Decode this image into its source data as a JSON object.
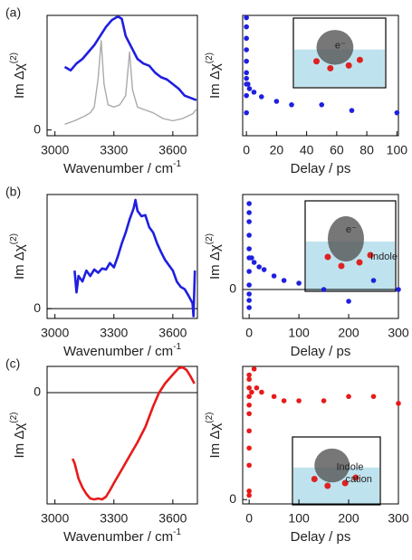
{
  "chart_data": [
    {
      "type": "line",
      "panel_label": "(a)",
      "xlabel": "Wavenumber / cm",
      "xlabel_sup": "-1",
      "ylabel": "Im Δχ",
      "ylabel_sup": "(2)",
      "xlim": [
        2960,
        3725
      ],
      "xticks": [
        3000,
        3300,
        3600
      ],
      "ylim": [
        -0.05,
        1
      ],
      "yticks": [
        0
      ],
      "zero_line": false,
      "series": [
        {
          "color": "#1f1fe0",
          "x": [
            3050,
            3080,
            3110,
            3140,
            3170,
            3200,
            3230,
            3260,
            3290,
            3320,
            3340,
            3360,
            3390,
            3420,
            3450,
            3480,
            3510,
            3540,
            3570,
            3600,
            3630,
            3660,
            3690,
            3720
          ],
          "values": [
            0.55,
            0.52,
            0.58,
            0.62,
            0.68,
            0.74,
            0.82,
            0.9,
            0.96,
            0.99,
            0.97,
            0.82,
            0.72,
            0.62,
            0.58,
            0.56,
            0.5,
            0.46,
            0.44,
            0.4,
            0.36,
            0.3,
            0.28,
            0.26
          ]
        },
        {
          "color": "#aaaaaa",
          "x": [
            3050,
            3100,
            3150,
            3180,
            3200,
            3220,
            3235,
            3250,
            3270,
            3300,
            3330,
            3360,
            3380,
            3395,
            3420,
            3450,
            3500,
            3550,
            3600,
            3650,
            3700,
            3720
          ],
          "values": [
            0.05,
            0.08,
            0.12,
            0.15,
            0.2,
            0.45,
            0.78,
            0.4,
            0.22,
            0.2,
            0.22,
            0.3,
            0.68,
            0.35,
            0.2,
            0.18,
            0.15,
            0.1,
            0.08,
            0.1,
            0.14,
            0.18
          ]
        }
      ]
    },
    {
      "type": "scatter",
      "xlabel": "Delay / ps",
      "ylabel": "Im Δχ",
      "ylabel_sup": "(2)",
      "color": "#1f1fe0",
      "xlim": [
        -2.5,
        101
      ],
      "xticks": [
        0,
        20,
        40,
        60,
        80,
        100
      ],
      "ylim": [
        -0.05,
        1
      ],
      "yticks": [],
      "zero_line": false,
      "inset_labels": [
        "e⁻"
      ],
      "x": [
        0,
        0,
        0,
        0,
        0,
        0,
        0,
        0,
        0,
        0,
        1,
        2,
        5,
        10,
        20,
        30,
        50,
        70,
        100
      ],
      "values": [
        0.98,
        0.9,
        0.8,
        0.7,
        0.6,
        0.5,
        0.45,
        0.4,
        0.3,
        0.15,
        0.4,
        0.36,
        0.33,
        0.29,
        0.25,
        0.22,
        0.22,
        0.17,
        0.15
      ]
    },
    {
      "type": "line",
      "panel_label": "(b)",
      "xlabel": "Wavenumber / cm",
      "xlabel_sup": "-1",
      "ylabel": "Im Δχ",
      "ylabel_sup": "(2)",
      "xlim": [
        2960,
        3725
      ],
      "xticks": [
        3000,
        3300,
        3600
      ],
      "ylim": [
        -0.09,
        1.05
      ],
      "yticks": [
        0
      ],
      "zero_line": true,
      "series": [
        {
          "color": "#1f1fe0",
          "x": [
            3100,
            3110,
            3120,
            3140,
            3160,
            3180,
            3200,
            3220,
            3240,
            3260,
            3280,
            3300,
            3320,
            3340,
            3360,
            3380,
            3400,
            3410,
            3420,
            3440,
            3460,
            3480,
            3500,
            3520,
            3540,
            3560,
            3580,
            3600,
            3620,
            3640,
            3660,
            3680,
            3700,
            3705,
            3712
          ],
          "values": [
            0.35,
            0.15,
            0.3,
            0.25,
            0.35,
            0.3,
            0.36,
            0.33,
            0.37,
            0.36,
            0.42,
            0.38,
            0.48,
            0.6,
            0.7,
            0.82,
            0.92,
            1.0,
            0.9,
            0.85,
            0.86,
            0.75,
            0.7,
            0.6,
            0.52,
            0.45,
            0.4,
            0.35,
            0.25,
            0.2,
            0.18,
            0.12,
            0.05,
            -0.07,
            0.35
          ]
        }
      ]
    },
    {
      "type": "scatter",
      "xlabel": "Delay / ps",
      "ylabel": "Im Δχ",
      "ylabel_sup": "(2)",
      "color": "#1f1fe0",
      "xlim": [
        -13,
        300
      ],
      "xticks": [
        0,
        100,
        200,
        300
      ],
      "ylim": [
        -0.32,
        1.05
      ],
      "yticks": [
        0
      ],
      "zero_line": true,
      "inset_labels": [
        "e⁻",
        "Indole"
      ],
      "x": [
        0,
        0,
        0,
        0,
        0,
        0,
        0,
        0,
        0,
        0,
        0,
        5,
        10,
        20,
        30,
        50,
        70,
        100,
        150,
        200,
        250,
        300
      ],
      "values": [
        0.95,
        0.85,
        0.75,
        0.6,
        0.45,
        0.35,
        0.2,
        0.05,
        -0.05,
        -0.12,
        -0.2,
        0.35,
        0.3,
        0.25,
        0.22,
        0.15,
        0.1,
        0.07,
        0.0,
        -0.13,
        0.1,
        0.0
      ]
    },
    {
      "type": "line",
      "panel_label": "(c)",
      "xlabel": "Wavenumber / cm",
      "xlabel_sup": "-1",
      "ylabel": "Im Δχ",
      "ylabel_sup": "(2)",
      "xlim": [
        2960,
        3725
      ],
      "xticks": [
        3000,
        3300,
        3600
      ],
      "ylim": [
        -1.23,
        0.29
      ],
      "yticks": [
        0
      ],
      "zero_line": true,
      "series": [
        {
          "color": "#e81a1a",
          "x": [
            3090,
            3100,
            3120,
            3140,
            3160,
            3180,
            3200,
            3220,
            3240,
            3260,
            3280,
            3300,
            3340,
            3380,
            3420,
            3460,
            3500,
            3530,
            3560,
            3600,
            3630,
            3650,
            3670,
            3690,
            3710
          ],
          "values": [
            -0.73,
            -0.78,
            -0.95,
            -1.05,
            -1.12,
            -1.17,
            -1.18,
            -1.17,
            -1.18,
            -1.15,
            -1.08,
            -1.0,
            -0.85,
            -0.7,
            -0.55,
            -0.38,
            -0.15,
            0.0,
            0.1,
            0.2,
            0.27,
            0.28,
            0.25,
            0.18,
            0.1
          ]
        }
      ]
    },
    {
      "type": "scatter",
      "xlabel": "Delay / ps",
      "ylabel": "Im Δχ",
      "ylabel_sup": "(2)",
      "color": "#e81a1a",
      "xlim": [
        -13,
        300
      ],
      "xticks": [
        0,
        100,
        200,
        300
      ],
      "ylim": [
        -0.05,
        1.55
      ],
      "yticks": [
        0
      ],
      "zero_line": false,
      "inset_labels": [
        "Indole",
        "cation"
      ],
      "x": [
        0,
        0,
        0,
        0,
        0,
        0,
        0,
        0,
        0,
        0,
        0,
        5,
        10,
        15,
        25,
        50,
        70,
        100,
        150,
        200,
        250,
        300
      ],
      "values": [
        1.45,
        1.4,
        1.3,
        1.2,
        1.1,
        1.0,
        0.8,
        0.6,
        0.4,
        0.1,
        0.05,
        1.25,
        1.52,
        1.3,
        1.25,
        1.2,
        1.15,
        1.15,
        1.15,
        1.2,
        1.2,
        1.12
      ]
    }
  ]
}
